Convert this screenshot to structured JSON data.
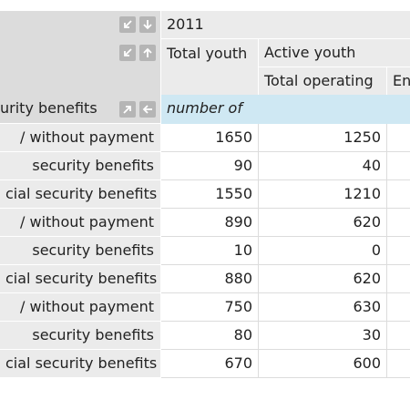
{
  "header": {
    "year": "2011",
    "col_total_youth": "Total youth",
    "col_active_youth": "Active youth",
    "sub_total_operating": "Total operating",
    "sub_partial": "En",
    "row_dim_label": "urity benefits",
    "unit_label": "number of"
  },
  "controls": {
    "year_row": [
      "collapse-icon",
      "arrow-down-icon"
    ],
    "youth_row": [
      "collapse-icon",
      "arrow-up-icon"
    ],
    "dim_row": [
      "expand-icon",
      "arrow-left-icon"
    ]
  },
  "rows": [
    {
      "label": "/ without payment",
      "total_youth": "1650",
      "total_operating": "1250"
    },
    {
      "label": " security benefits",
      "total_youth": "90",
      "total_operating": "40"
    },
    {
      "label": "cial security benefits",
      "total_youth": "1550",
      "total_operating": "1210"
    },
    {
      "label": "/ without payment",
      "total_youth": "890",
      "total_operating": "620"
    },
    {
      "label": " security benefits",
      "total_youth": "10",
      "total_operating": "0"
    },
    {
      "label": "cial security benefits",
      "total_youth": "880",
      "total_operating": "620"
    },
    {
      "label": "/ without payment",
      "total_youth": "750",
      "total_operating": "630"
    },
    {
      "label": " security benefits",
      "total_youth": "80",
      "total_operating": "30"
    },
    {
      "label": "cial security benefits",
      "total_youth": "670",
      "total_operating": "600"
    }
  ]
}
